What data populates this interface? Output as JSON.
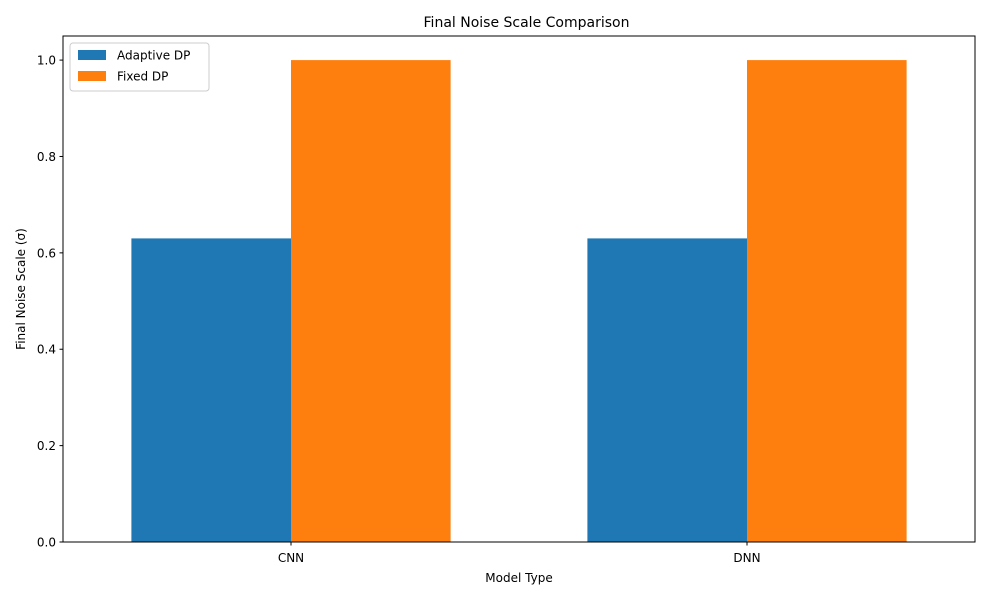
{
  "chart_data": {
    "type": "bar",
    "title": "Final Noise Scale Comparison",
    "xlabel": "Model Type",
    "ylabel": "Final Noise Scale (σ)",
    "categories": [
      "CNN",
      "DNN"
    ],
    "series": [
      {
        "name": "Adaptive DP",
        "values": [
          0.63,
          0.63
        ],
        "color": "#1f77b4"
      },
      {
        "name": "Fixed DP",
        "values": [
          1.0,
          1.0
        ],
        "color": "#ff7f0e"
      }
    ],
    "ylim": [
      0,
      1.05
    ],
    "yticks": [
      0.0,
      0.2,
      0.4,
      0.6,
      0.8,
      1.0
    ],
    "ytick_labels": [
      "0.0",
      "0.2",
      "0.4",
      "0.6",
      "0.8",
      "1.0"
    ],
    "grid": false,
    "legend_position": "top-left"
  }
}
